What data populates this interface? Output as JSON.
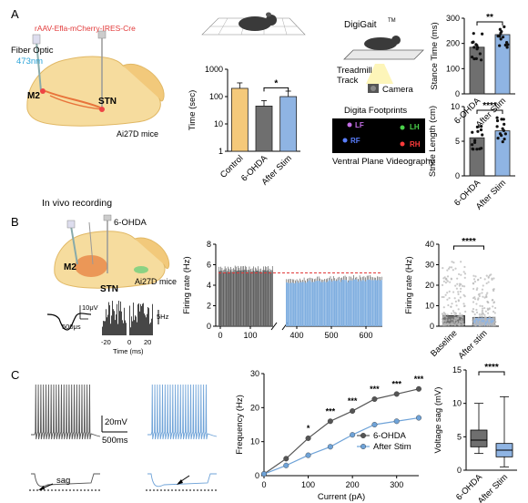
{
  "panels": {
    "A": {
      "letter": "A",
      "virus_label": "rAAV-Efla-mCherry-IRES-Cre",
      "fiber_label": "Fiber Optic",
      "wavelength": "473nm",
      "region_m2": "M2",
      "region_stn": "STN",
      "mouse_line": "Ai27D mice",
      "digigait": "DigiGait",
      "tm": "TM",
      "treadmill": "Treadmill",
      "track": "Track",
      "camera": "Camera",
      "footprints_title": "Digita Footprints",
      "paw_lf": "LF",
      "paw_lh": "LH",
      "paw_rf": "RF",
      "paw_rh": "RH",
      "ventral": "Ventral Plane Videography"
    },
    "B": {
      "letter": "B",
      "invivo": "In vivo recording",
      "drug": "6-OHDA",
      "region_m2": "M2",
      "region_stn": "STN",
      "mouse_line": "Ai27D mice",
      "scale_uv": "10μV",
      "scale_us": "500μs",
      "scale_hz": "5Hz",
      "autocorr_xlabel": "Time (ms)",
      "autocorr_ticks": [
        "-20",
        "0",
        "20"
      ]
    },
    "C": {
      "letter": "C",
      "scale_mv": "20mV",
      "scale_ms": "500ms",
      "sag": "sag"
    }
  },
  "chart_data": [
    {
      "id": "time-bar",
      "type": "bar",
      "title": "",
      "xlabel": "",
      "ylabel": "Time (sec)",
      "yscale": "log",
      "ylim": [
        1,
        1000
      ],
      "yticks": [
        "1",
        "10",
        "100",
        "1000"
      ],
      "categories": [
        "Control",
        "6-OHDA",
        "After Stim"
      ],
      "values": [
        200,
        45,
        100
      ],
      "colors": [
        "#f5c97a",
        "#6f6f6f",
        "#8fb4e3"
      ],
      "significance": "*"
    },
    {
      "id": "stance-time",
      "type": "bar",
      "title": "",
      "xlabel": "",
      "ylabel": "Stance Time (ms)",
      "ylim": [
        0,
        300
      ],
      "yticks": [
        "0",
        "100",
        "200",
        "300"
      ],
      "categories": [
        "6-OHDA",
        "After Stim"
      ],
      "values": [
        185,
        235
      ],
      "colors": [
        "#6f6f6f",
        "#8fb4e3"
      ],
      "significance": "**"
    },
    {
      "id": "stride-length",
      "type": "bar",
      "title": "",
      "xlabel": "",
      "ylabel": "Stride Length (cm)",
      "ylim": [
        0,
        10
      ],
      "yticks": [
        "0",
        "5",
        "10"
      ],
      "categories": [
        "6-OHDA",
        "After Stim"
      ],
      "values": [
        5.5,
        6.5
      ],
      "colors": [
        "#6f6f6f",
        "#8fb4e3"
      ],
      "significance": "****"
    },
    {
      "id": "firing-timecourse",
      "type": "bar",
      "title": "",
      "xlabel": "",
      "ylabel": "Firing rate (Hz)",
      "ylim": [
        0,
        8
      ],
      "yticks": [
        "0",
        "2",
        "4",
        "6",
        "8"
      ],
      "xticks": [
        "0",
        "100",
        "400",
        "500",
        "600"
      ],
      "segments": [
        {
          "x_range": [
            0,
            160
          ],
          "mean": 5.4,
          "color": "#5f5f5f"
        },
        {
          "x_range": [
            370,
            670
          ],
          "mean": 4.3,
          "color": "#7faee0"
        }
      ],
      "reference_line": 5.2
    },
    {
      "id": "firing-summary",
      "type": "bar",
      "title": "",
      "xlabel": "",
      "ylabel": "Firing rate (Hz)",
      "ylim": [
        0,
        40
      ],
      "yticks": [
        "0",
        "10",
        "20",
        "30",
        "40"
      ],
      "categories": [
        "Baseline",
        "After stim"
      ],
      "values": [
        5.2,
        4.3
      ],
      "colors": [
        "#6f6f6f",
        "#8fb4e3"
      ],
      "significance": "****"
    },
    {
      "id": "frequency-current",
      "type": "line",
      "title": "",
      "xlabel": "Current (pA)",
      "ylabel": "Frequency (Hz)",
      "xlim": [
        0,
        350
      ],
      "ylim": [
        0,
        30
      ],
      "xticks": [
        "0",
        "100",
        "200",
        "300"
      ],
      "yticks": [
        "0",
        "10",
        "20",
        "30"
      ],
      "x": [
        0,
        50,
        100,
        150,
        200,
        250,
        300,
        350
      ],
      "series": [
        {
          "name": "6-OHDA",
          "color": "#555555",
          "values": [
            0.5,
            5,
            11,
            16,
            19,
            22.5,
            24,
            25.5
          ]
        },
        {
          "name": "After Stim",
          "color": "#6fa3d8",
          "values": [
            0.5,
            3,
            6,
            8.5,
            12,
            15,
            16,
            17
          ]
        }
      ],
      "significance": [
        "*",
        "***",
        "***",
        "***",
        "***",
        "***"
      ]
    },
    {
      "id": "voltage-sag",
      "type": "box",
      "title": "",
      "xlabel": "",
      "ylabel": "Voltage sag (mV)",
      "ylim": [
        0,
        15
      ],
      "yticks": [
        "0",
        "5",
        "10",
        "15"
      ],
      "categories": [
        "6-OHDA",
        "After Stim"
      ],
      "boxes": [
        {
          "min": 2.5,
          "q1": 3.5,
          "median": 4.5,
          "q3": 6.0,
          "max": 10.0,
          "color": "#6f6f6f"
        },
        {
          "min": 0.5,
          "q1": 2.0,
          "median": 3.0,
          "q3": 4.0,
          "max": 11.0,
          "color": "#8fb4e3"
        }
      ],
      "significance": "****"
    }
  ]
}
